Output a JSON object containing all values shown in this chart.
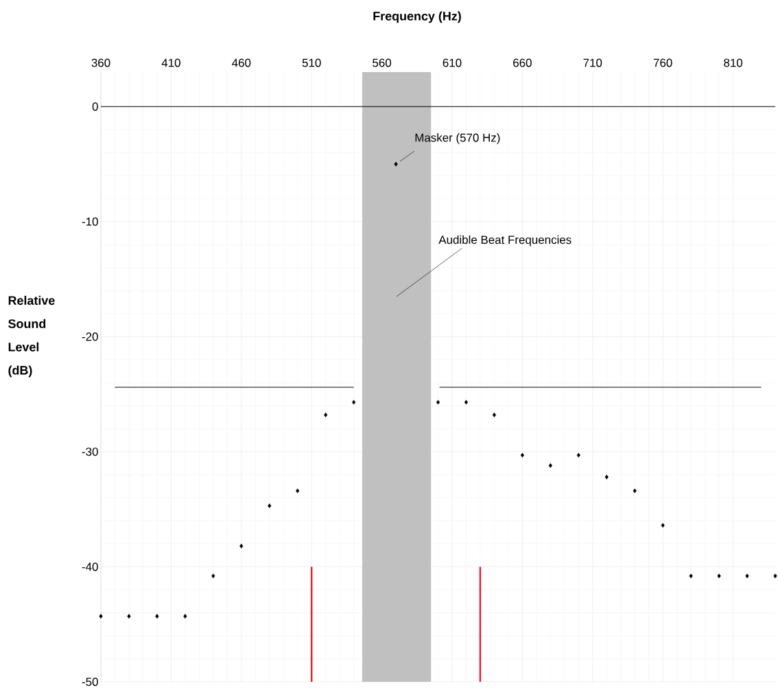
{
  "chart_data": {
    "type": "scatter",
    "xlabel": "Frequency (Hz)",
    "ylabel": "Relative Sound Level (dB)",
    "xlim": [
      360,
      840
    ],
    "ylim": [
      -50,
      3
    ],
    "xticks": [
      360,
      410,
      460,
      510,
      560,
      610,
      660,
      710,
      760,
      810
    ],
    "yticks": [
      -50,
      -40,
      -30,
      -20,
      -10,
      0
    ],
    "grid": true,
    "marker": "diamond",
    "series": [
      {
        "color": "#000000",
        "x": [
          360,
          380,
          400,
          420,
          440,
          460,
          480,
          500,
          520,
          540,
          570,
          600,
          620,
          640,
          660,
          680,
          700,
          720,
          740,
          760,
          780,
          800,
          820,
          840
        ],
        "values": [
          -44.3,
          -44.3,
          -44.3,
          -44.3,
          -40.8,
          -38.2,
          -34.7,
          -33.4,
          -26.8,
          -25.7,
          -5,
          -25.7,
          -25.7,
          -26.8,
          -30.3,
          -31.2,
          -30.3,
          -32.2,
          -33.4,
          -36.4,
          -40.8,
          -40.8,
          -40.8,
          -40.8
        ]
      },
      {
        "type": "line",
        "marker": "none",
        "color": "#000000",
        "x": [
          370,
          540,
          570,
          601,
          830
        ],
        "values": [
          -24.4,
          -24.4,
          null,
          -24.4,
          -24.4
        ]
      },
      {
        "type": "line",
        "marker": "none",
        "color": "#e8202a",
        "x": [
          510,
          510,
          570,
          630,
          630
        ],
        "values": [
          -50,
          -40,
          null,
          -50,
          -40
        ]
      }
    ],
    "ref_lines": [
      {
        "axis": "y",
        "value": 0,
        "color": "#000000"
      }
    ],
    "bands": [
      {
        "axis": "x",
        "from": 546,
        "to": 595,
        "label": "Audible Beat Frequencies",
        "color": "#c0c0c0"
      }
    ],
    "annotations": [
      {
        "text": "Masker (570 Hz)",
        "x": 570,
        "y": -5
      }
    ]
  }
}
